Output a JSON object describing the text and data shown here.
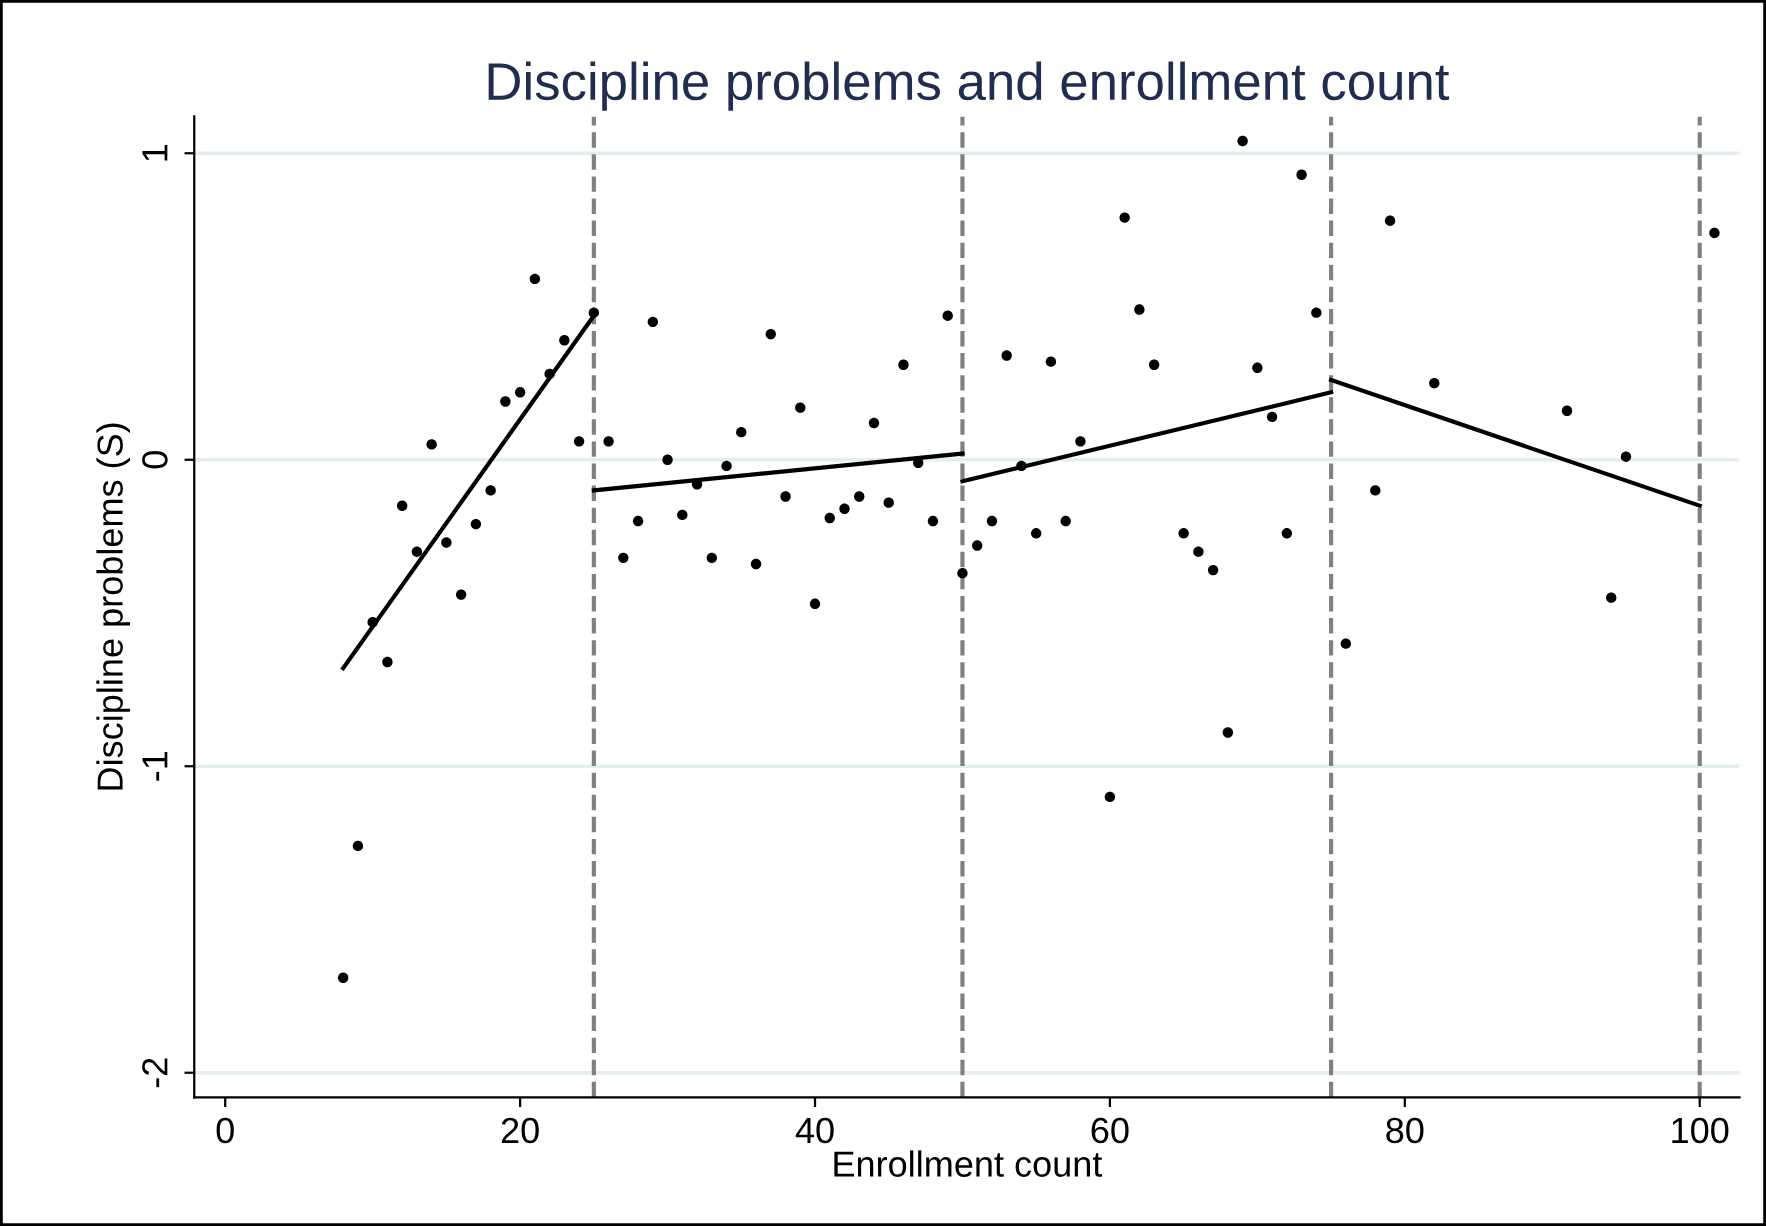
{
  "chart_data": {
    "type": "scatter",
    "title": "Discipline problems and enrollment count",
    "xlabel": "Enrollment count",
    "ylabel": "Discipline problems (S)",
    "xlim": [
      -2.1,
      102.7
    ],
    "ylim": [
      -2.08,
      1.12
    ],
    "xticks": [
      0,
      20,
      40,
      60,
      80,
      100
    ],
    "yticks": [
      -2,
      -1,
      0,
      1
    ],
    "grid": "y",
    "legend": false,
    "series": [
      {
        "marker": "circle",
        "color": "#000000",
        "x": [
          8,
          9,
          10,
          11,
          12,
          13,
          14,
          15,
          16,
          17,
          18,
          19,
          20,
          21,
          22,
          23,
          24,
          25,
          26,
          27,
          28,
          29,
          30,
          31,
          32,
          33,
          34,
          35,
          36,
          37,
          38,
          39,
          40,
          41,
          42,
          43,
          44,
          45,
          46,
          47,
          48,
          49,
          50,
          51,
          52,
          53,
          54,
          55,
          56,
          57,
          58,
          60,
          61,
          62,
          63,
          65,
          66,
          67,
          68,
          69,
          70,
          71,
          72,
          73,
          74,
          76,
          78,
          79,
          82,
          91,
          94,
          95,
          101
        ],
        "values": [
          -1.69,
          -1.26,
          -0.53,
          -0.66,
          -0.15,
          -0.3,
          0.05,
          -0.27,
          -0.44,
          -0.21,
          -0.1,
          0.19,
          0.22,
          0.59,
          0.28,
          0.39,
          0.06,
          0.48,
          0.06,
          -0.32,
          -0.2,
          0.45,
          0.0,
          -0.18,
          -0.08,
          -0.32,
          -0.02,
          0.09,
          -0.34,
          0.41,
          -0.12,
          0.17,
          -0.47,
          -0.19,
          -0.16,
          -0.12,
          0.12,
          -0.14,
          0.31,
          -0.01,
          -0.2,
          0.47,
          -0.37,
          -0.28,
          -0.2,
          0.34,
          -0.02,
          -0.24,
          0.32,
          -0.2,
          0.06,
          -1.1,
          0.79,
          0.49,
          0.31,
          -0.24,
          -0.3,
          -0.36,
          -0.89,
          1.04,
          0.3,
          0.14,
          -0.24,
          0.93,
          0.48,
          -0.6,
          -0.1,
          0.78,
          0.25,
          0.16,
          -0.45,
          0.01,
          0.74
        ]
      },
      {
        "type": "line",
        "color": "#000000",
        "x": [
          8,
          25
        ],
        "values": [
          -0.68,
          0.47
        ]
      },
      {
        "type": "line",
        "color": "#000000",
        "x": [
          25,
          50
        ],
        "values": [
          -0.1,
          0.02
        ]
      },
      {
        "type": "line",
        "color": "#000000",
        "x": [
          50,
          75
        ],
        "values": [
          -0.07,
          0.22
        ]
      },
      {
        "type": "line",
        "color": "#000000",
        "x": [
          75,
          100
        ],
        "values": [
          0.26,
          -0.15
        ]
      }
    ],
    "ref_lines": [
      {
        "axis": "x",
        "value": 25,
        "color": "#808080",
        "line_style": "dashed"
      },
      {
        "axis": "x",
        "value": 50,
        "color": "#808080",
        "line_style": "dashed"
      },
      {
        "axis": "x",
        "value": 75,
        "color": "#808080",
        "line_style": "dashed"
      },
      {
        "axis": "x",
        "value": 100,
        "color": "#808080",
        "line_style": "dashed"
      }
    ]
  }
}
